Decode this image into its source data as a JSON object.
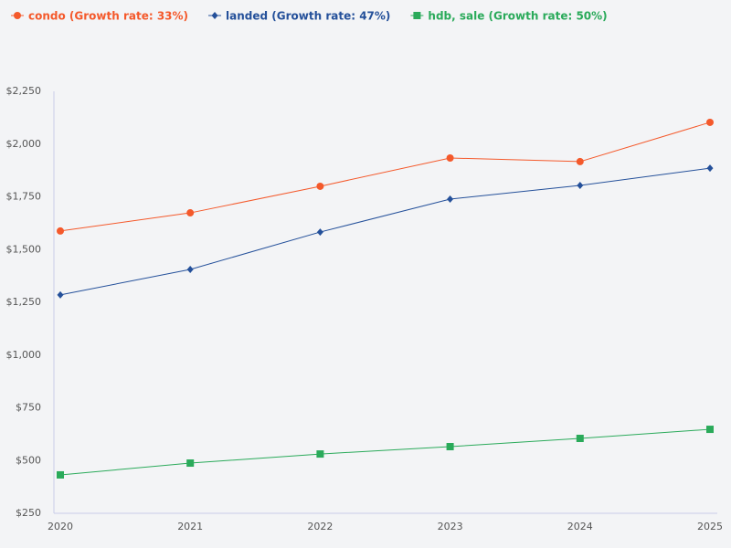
{
  "chart_data": {
    "type": "line",
    "x": [
      2020,
      2021,
      2022,
      2023,
      2024,
      2025
    ],
    "xlim": [
      2020,
      2025
    ],
    "xticks": [
      2020,
      2021,
      2022,
      2023,
      2024,
      2025
    ],
    "ylim": [
      250,
      2250
    ],
    "yticks": [
      {
        "value": 250,
        "label": "$250"
      },
      {
        "value": 500,
        "label": "$500"
      },
      {
        "value": 750,
        "label": "$750"
      },
      {
        "value": 1000,
        "label": "$1,000"
      },
      {
        "value": 1250,
        "label": "$1,250"
      },
      {
        "value": 1500,
        "label": "$1,500"
      },
      {
        "value": 1750,
        "label": "$1,750"
      },
      {
        "value": 2000,
        "label": "$2,000"
      },
      {
        "value": 2250,
        "label": "$2,250"
      }
    ],
    "grid": false,
    "legend": "top-left",
    "series": [
      {
        "name": "condo (Growth rate: 33%)",
        "color": "#f4592b",
        "marker": "circle",
        "values": [
          1588,
          1674,
          1800,
          1934,
          1917,
          2103
        ]
      },
      {
        "name": "landed (Growth rate: 47%)",
        "color": "#24509a",
        "marker": "diamond",
        "values": [
          1285,
          1406,
          1583,
          1739,
          1804,
          1886
        ]
      },
      {
        "name": "hdb, sale (Growth rate: 50%)",
        "color": "#2aaa5a",
        "marker": "square",
        "values": [
          432,
          488,
          531,
          566,
          605,
          648
        ]
      }
    ]
  }
}
